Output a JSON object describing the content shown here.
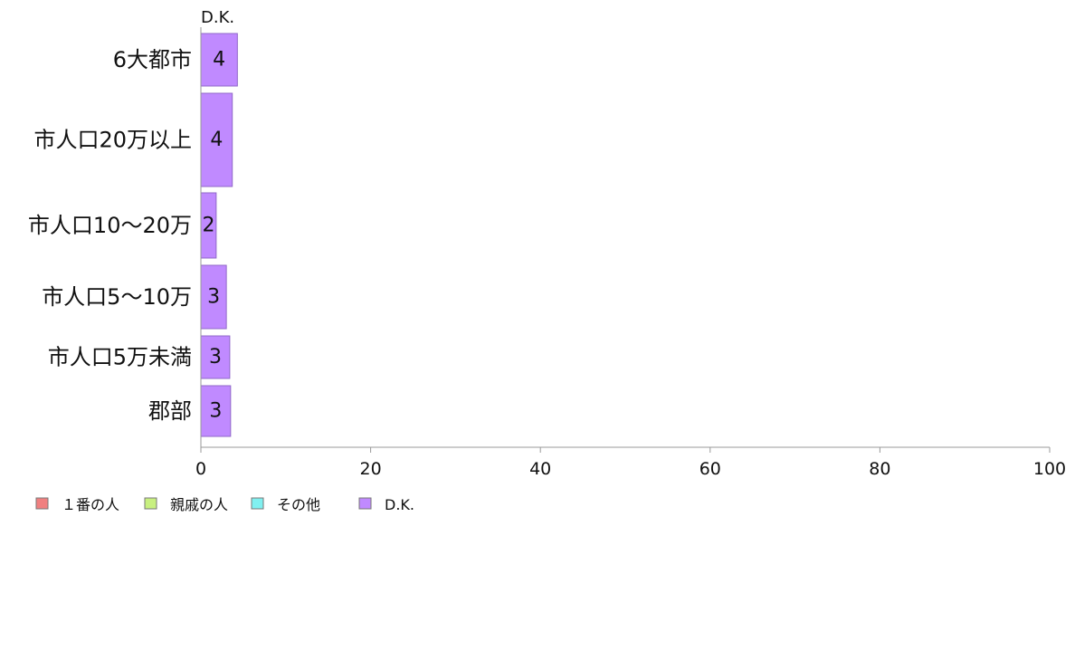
{
  "chart_data": {
    "type": "bar",
    "orientation": "horizontal",
    "stacked": true,
    "categories": [
      "6大都市",
      "市人口20万以上",
      "市人口10〜20万",
      "市人口5〜10万",
      "市人口5万未満",
      "郡部"
    ],
    "series": [
      {
        "name": "１番の人",
        "color": "#f08080",
        "values": [
          0,
          0,
          0,
          0,
          0,
          0
        ]
      },
      {
        "name": "親戚の人",
        "color": "#c8f080",
        "values": [
          0,
          0,
          0,
          0,
          0,
          0
        ]
      },
      {
        "name": "その他",
        "color": "#80f0f0",
        "values": [
          0,
          0,
          0,
          0,
          0,
          0
        ]
      },
      {
        "name": "D.K.",
        "color": "#c08aff",
        "values": [
          4.3,
          3.7,
          1.8,
          3.0,
          3.4,
          3.5
        ]
      }
    ],
    "data_labels": [
      "4",
      "4",
      "2",
      "3",
      "3",
      "3"
    ],
    "series_header": "D.K.",
    "xlim": [
      0,
      100
    ],
    "xticks": [
      "0",
      "20",
      "40",
      "60",
      "80",
      "100"
    ],
    "grid": false,
    "legend_position": "bottom-left"
  }
}
